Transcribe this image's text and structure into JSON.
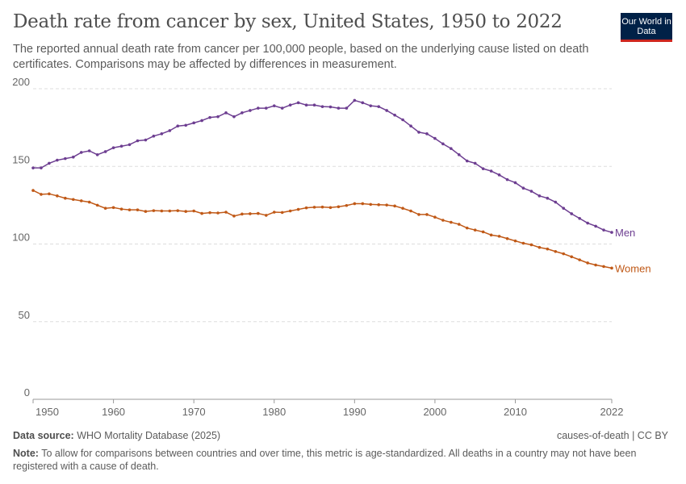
{
  "header": {
    "title": "Death rate from cancer by sex, United States, 1950 to 2022",
    "subtitle": "The reported annual death rate from cancer per 100,000 people, based on the underlying cause listed on death certificates. Comparisons may be affected by differences in measurement.",
    "logo": "Our World in Data"
  },
  "footer": {
    "source_label": "Data source:",
    "source": "WHO Mortality Database (2025)",
    "right": "causes-of-death | CC BY",
    "note_label": "Note:",
    "note": "To allow for comparisons between countries and over time, this metric is age-standardized. All deaths in a country may not have been registered with a cause of death."
  },
  "chart_data": {
    "type": "line",
    "title": "Death rate from cancer by sex, United States, 1950 to 2022",
    "xlim": [
      1950,
      2022
    ],
    "ylim": [
      0,
      200
    ],
    "x_ticks": [
      1950,
      1960,
      1970,
      1980,
      1990,
      2000,
      2010,
      2022
    ],
    "y_ticks": [
      0,
      50,
      100,
      150,
      200
    ],
    "grid": "horizontal dashed",
    "legend": "line-end labels",
    "x": [
      1950,
      1951,
      1952,
      1953,
      1954,
      1955,
      1956,
      1957,
      1958,
      1959,
      1960,
      1961,
      1962,
      1963,
      1964,
      1965,
      1966,
      1967,
      1968,
      1969,
      1970,
      1971,
      1972,
      1973,
      1974,
      1975,
      1976,
      1977,
      1978,
      1979,
      1980,
      1981,
      1982,
      1983,
      1984,
      1985,
      1986,
      1987,
      1988,
      1989,
      1990,
      1991,
      1992,
      1993,
      1994,
      1995,
      1996,
      1997,
      1998,
      1999,
      2000,
      2001,
      2002,
      2003,
      2004,
      2005,
      2006,
      2007,
      2008,
      2009,
      2010,
      2011,
      2012,
      2013,
      2014,
      2015,
      2016,
      2017,
      2018,
      2019,
      2020,
      2021,
      2022
    ],
    "series": [
      {
        "name": "Men",
        "color": "#6d3e91",
        "values": [
          149,
          149,
          152,
          154,
          155,
          156,
          159,
          160,
          157.5,
          159.5,
          162,
          163,
          164,
          166.5,
          167,
          169.5,
          171,
          173,
          176,
          176.5,
          178,
          179.5,
          181.5,
          182,
          184.5,
          182,
          184.5,
          186,
          187.5,
          187.5,
          189,
          187.5,
          189.5,
          191,
          189.5,
          189.5,
          188.5,
          188.3,
          187.5,
          187.5,
          192.5,
          191,
          189,
          188.5,
          186,
          183,
          180,
          176,
          172,
          171,
          168,
          164.5,
          161.5,
          157.5,
          153.5,
          152,
          148.5,
          147,
          144.5,
          141.5,
          139.5,
          136,
          134,
          131,
          129.5,
          127,
          123,
          119.5,
          116.5,
          113.5,
          111.5,
          109,
          107.5
        ]
      },
      {
        "name": "Women",
        "color": "#c05917",
        "values": [
          134.5,
          132,
          132.3,
          131,
          129.5,
          128.7,
          127.8,
          127,
          125,
          123,
          123.5,
          122.5,
          122,
          122,
          121,
          121.5,
          121.3,
          121.3,
          121.5,
          121,
          121.3,
          119.7,
          120.2,
          120,
          120.5,
          118,
          119.3,
          119.5,
          119.7,
          118.5,
          120.5,
          120.3,
          121.3,
          122.3,
          123.3,
          123.7,
          123.8,
          123.5,
          124,
          124.8,
          126,
          126,
          125.5,
          125.3,
          125.1,
          124.5,
          123,
          121.3,
          119,
          119,
          117.3,
          115.3,
          114,
          112.7,
          110.3,
          109,
          107.8,
          105.8,
          105,
          103.5,
          102,
          100.5,
          99.5,
          97.8,
          96.8,
          95.2,
          93.7,
          91.8,
          89.8,
          87.8,
          86.5,
          85.5,
          84.5
        ]
      }
    ]
  }
}
